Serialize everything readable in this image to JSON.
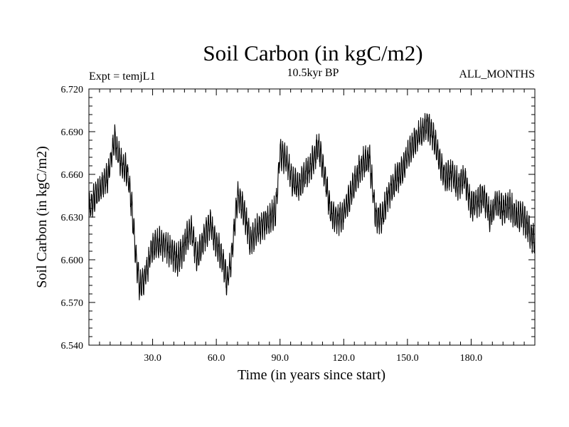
{
  "chart_data": {
    "type": "line",
    "title": "Soil Carbon (in kgC/m2)",
    "left_label": "Expt = temjL1",
    "center_label": "10.5kyr BP",
    "right_label": "ALL_MONTHS",
    "xlabel": "Time (in years since start)",
    "ylabel": "Soil Carbon (in kgC/m2)",
    "xlim": [
      0,
      210
    ],
    "ylim": [
      6.54,
      6.72
    ],
    "x_ticks": [
      30,
      60,
      90,
      120,
      150,
      180
    ],
    "x_tick_labels": [
      "30.0",
      "60.0",
      "90.0",
      "120.0",
      "150.0",
      "180.0"
    ],
    "y_ticks": [
      6.54,
      6.57,
      6.6,
      6.63,
      6.66,
      6.69,
      6.72
    ],
    "y_tick_labels": [
      "6.540",
      "6.570",
      "6.600",
      "6.630",
      "6.660",
      "6.690",
      "6.720"
    ],
    "series": [
      {
        "name": "Soil Carbon",
        "color": "#000000",
        "x": [
          0,
          3,
          6,
          9,
          12,
          15,
          18,
          20,
          22,
          24,
          27,
          30,
          33,
          36,
          39,
          42,
          45,
          48,
          51,
          54,
          57,
          60,
          63,
          65,
          67,
          70,
          73,
          76,
          79,
          82,
          85,
          88,
          90,
          93,
          96,
          99,
          102,
          105,
          108,
          111,
          114,
          117,
          120,
          123,
          126,
          129,
          132,
          135,
          138,
          141,
          144,
          147,
          150,
          153,
          156,
          159,
          162,
          165,
          168,
          171,
          174,
          177,
          180,
          183,
          186,
          189,
          192,
          195,
          198,
          201,
          204,
          207,
          210
        ],
        "values": [
          6.634,
          6.645,
          6.652,
          6.658,
          6.685,
          6.668,
          6.662,
          6.64,
          6.605,
          6.58,
          6.59,
          6.61,
          6.612,
          6.61,
          6.605,
          6.6,
          6.61,
          6.622,
          6.6,
          6.615,
          6.625,
          6.612,
          6.6,
          6.585,
          6.6,
          6.645,
          6.635,
          6.612,
          6.62,
          6.625,
          6.628,
          6.635,
          6.675,
          6.67,
          6.655,
          6.652,
          6.66,
          6.668,
          6.68,
          6.66,
          6.632,
          6.628,
          6.632,
          6.645,
          6.658,
          6.668,
          6.672,
          6.63,
          6.63,
          6.645,
          6.655,
          6.662,
          6.672,
          6.682,
          6.688,
          6.695,
          6.688,
          6.67,
          6.658,
          6.66,
          6.652,
          6.657,
          6.638,
          6.64,
          6.645,
          6.63,
          6.64,
          6.635,
          6.638,
          6.63,
          6.63,
          6.622,
          6.612
        ]
      }
    ]
  }
}
